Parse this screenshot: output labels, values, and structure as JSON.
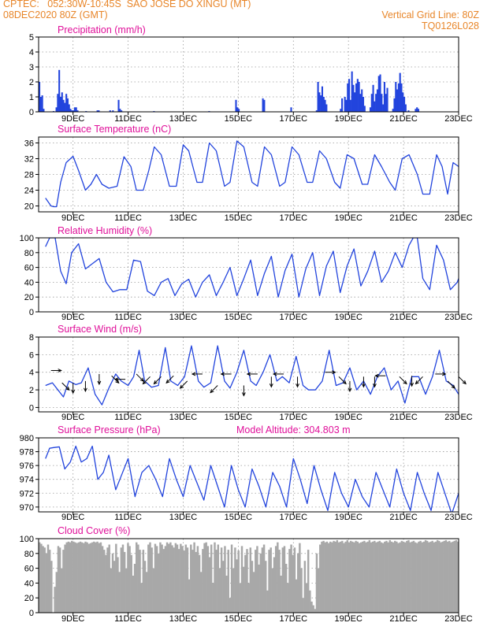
{
  "header": {
    "line1_left": "CPTEC:   052:30W-10:45S  SAO JOSE DO XINGU (MT)",
    "line2_left": "08DEC2020 80Z (GMT)",
    "line2_right": "Vertical Grid Line: 80Z",
    "line3_right": "TQ0126L028"
  },
  "colors": {
    "header": "#e8862a",
    "title": "#e0109a",
    "series": "#2244dd",
    "cloud": "#a8a8a8",
    "arrow": "#000000"
  },
  "x_ticks": [
    "9DEC",
    "11DEC",
    "13DEC",
    "15DEC",
    "17DEC",
    "19DEC",
    "21DEC",
    "23DEC"
  ],
  "chart_data": [
    {
      "type": "bar",
      "title": "Precipitation (mm/h)",
      "ylim": [
        0,
        5
      ],
      "yticks": [
        0,
        1,
        2,
        3,
        4,
        5
      ],
      "grid": true,
      "values": [
        2.0,
        1.0,
        1.1,
        0.2,
        0,
        0,
        0,
        0,
        0,
        0,
        0.05,
        0,
        0.3,
        1.2,
        2.8,
        1.0,
        1.3,
        0.8,
        0.6,
        1.2,
        0.9,
        0.5,
        0.2,
        0.1,
        0.1,
        0.3,
        0.3,
        0.1,
        0,
        0,
        0,
        0,
        0,
        0.05,
        0,
        0,
        0,
        0,
        0,
        0,
        0,
        0.1,
        0.1,
        0,
        0,
        0,
        0,
        0,
        0,
        0,
        0.1,
        0,
        0.1,
        0,
        0,
        0,
        0.8,
        0.2,
        0.1,
        0,
        0,
        0,
        0,
        0,
        0,
        0,
        0,
        0,
        0,
        0,
        0,
        0,
        0,
        0,
        0,
        0,
        0,
        0,
        0,
        0,
        0,
        0.05,
        0,
        0,
        0,
        0,
        0,
        0,
        0,
        0,
        0,
        0,
        0,
        0,
        0,
        0,
        0,
        0,
        0,
        0,
        0,
        0,
        0,
        0,
        0,
        0,
        0,
        0,
        0,
        0,
        0,
        0,
        0,
        0,
        0,
        0,
        0,
        0,
        0,
        0,
        0.05,
        0,
        0,
        0,
        0,
        0,
        0,
        0,
        0,
        0,
        0,
        0,
        0,
        0,
        0,
        0,
        0,
        0,
        0,
        0.8,
        0.3,
        0.2,
        0,
        0,
        0,
        0,
        0,
        0,
        0,
        0,
        0,
        0,
        0,
        0,
        0,
        0,
        0,
        0,
        0.9,
        0.8,
        0,
        0,
        0,
        0,
        0,
        0,
        0,
        0,
        0,
        0,
        0,
        0,
        0,
        0,
        0,
        0,
        0,
        0,
        0.3,
        0,
        0,
        0,
        0,
        0,
        0,
        0,
        0,
        0,
        0,
        0,
        0,
        0,
        0,
        0,
        0,
        0,
        0.1,
        2.0,
        1.3,
        1.1,
        1.7,
        1.0,
        0.8,
        0.5,
        0,
        0,
        0,
        0,
        0,
        0,
        0,
        0,
        0,
        0.2,
        0.9,
        0,
        1.0,
        0.8,
        1.9,
        2.2,
        0.8,
        2.7,
        1.8,
        1.3,
        1.9,
        2.2,
        2.0,
        1.2,
        1.5,
        1.0,
        0.4,
        0,
        0,
        0,
        0.3,
        1.2,
        1.8,
        0.7,
        1.2,
        1.5,
        2.4,
        2.5,
        1.2,
        0.5,
        2.0,
        1.2,
        1.6,
        0,
        0,
        0,
        0.2,
        0.9,
        2.0,
        1.5,
        1.9,
        2.6,
        1.9,
        1.3,
        1.0,
        0.5,
        0,
        0.1,
        0,
        0,
        0,
        0,
        0.2,
        0.3,
        0.2,
        0,
        0,
        0,
        0,
        0,
        0,
        0,
        0,
        0,
        0,
        0,
        0,
        0,
        0,
        0,
        0,
        0,
        0,
        0,
        0,
        0,
        0,
        0,
        0,
        0,
        0,
        0,
        0
      ]
    },
    {
      "type": "line",
      "title": "Surface Temperature (nC)",
      "ylim": [
        18.5,
        37.5
      ],
      "yticks": [
        20,
        24,
        28,
        32,
        36
      ],
      "grid": true,
      "x_days": [
        8.0,
        8.2,
        8.3,
        8.4,
        8.55,
        8.75,
        9.0,
        9.2,
        9.45,
        9.65,
        9.85,
        10.05,
        10.3,
        10.6,
        10.85,
        11.1,
        11.3,
        11.55,
        11.75,
        11.95,
        12.2,
        12.5,
        12.75,
        13.0,
        13.2,
        13.5,
        13.7,
        13.95,
        14.2,
        14.5,
        14.7,
        14.95,
        15.2,
        15.5,
        15.7,
        15.95,
        16.2,
        16.5,
        16.7,
        16.95,
        17.2,
        17.5,
        17.7,
        17.95,
        18.2,
        18.5,
        18.7,
        18.95,
        19.2,
        19.5,
        19.7,
        19.95,
        20.2,
        20.5,
        20.7,
        20.95,
        21.2,
        21.5,
        21.7,
        21.95,
        22.2,
        22.4,
        22.6,
        22.8,
        23.0
      ],
      "values": [
        22,
        20,
        19.8,
        19.8,
        26,
        31,
        32.6,
        29,
        24,
        25.5,
        28,
        25.5,
        24.5,
        25,
        32.5,
        30,
        24,
        24,
        29,
        35,
        33,
        25,
        25,
        35.5,
        34,
        26,
        26,
        36,
        34,
        25,
        26,
        36.5,
        35,
        26,
        25,
        35,
        33,
        25,
        26,
        35,
        33,
        26,
        26,
        34,
        32,
        26,
        24.5,
        33,
        32,
        25.5,
        25.5,
        33,
        30,
        26,
        24,
        32,
        33,
        28,
        23,
        23,
        33,
        30,
        23,
        31,
        30
      ]
    },
    {
      "type": "line",
      "title": "Relative Humidity (%)",
      "ylim": [
        0,
        100
      ],
      "yticks": [
        0,
        20,
        40,
        60,
        80,
        100
      ],
      "grid": true,
      "x_days": [
        8.0,
        8.15,
        8.35,
        8.55,
        8.75,
        8.95,
        9.2,
        9.45,
        9.7,
        9.95,
        10.2,
        10.45,
        10.7,
        10.95,
        11.2,
        11.45,
        11.7,
        11.95,
        12.2,
        12.45,
        12.7,
        12.95,
        13.2,
        13.45,
        13.7,
        13.95,
        14.2,
        14.45,
        14.7,
        14.95,
        15.2,
        15.45,
        15.7,
        15.95,
        16.2,
        16.45,
        16.7,
        16.95,
        17.2,
        17.45,
        17.7,
        17.95,
        18.2,
        18.45,
        18.7,
        18.95,
        19.2,
        19.45,
        19.7,
        19.95,
        20.2,
        20.45,
        20.7,
        20.95,
        21.2,
        21.35,
        21.5,
        21.7,
        21.95,
        22.2,
        22.45,
        22.7,
        22.95,
        23.0
      ],
      "values": [
        88,
        100,
        100,
        55,
        38,
        80,
        92,
        58,
        65,
        72,
        40,
        27,
        30,
        30,
        70,
        68,
        28,
        22,
        40,
        45,
        22,
        38,
        44,
        20,
        40,
        50,
        22,
        40,
        60,
        22,
        45,
        70,
        22,
        52,
        75,
        20,
        56,
        78,
        20,
        58,
        80,
        22,
        62,
        82,
        26,
        62,
        85,
        35,
        55,
        82,
        40,
        55,
        80,
        60,
        90,
        100,
        100,
        45,
        30,
        90,
        70,
        30,
        40,
        45
      ]
    },
    {
      "type": "line",
      "title": "Surface Wind (m/s)",
      "ylim": [
        -0.5,
        8
      ],
      "yticks": [
        0,
        2,
        4,
        6,
        8
      ],
      "grid": true,
      "x_days": [
        8.0,
        8.25,
        8.45,
        8.65,
        8.85,
        9.1,
        9.3,
        9.55,
        9.8,
        10.05,
        10.3,
        10.55,
        10.75,
        11.0,
        11.2,
        11.4,
        11.6,
        11.85,
        12.1,
        12.35,
        12.55,
        12.8,
        13.05,
        13.3,
        13.55,
        13.75,
        14.0,
        14.25,
        14.5,
        14.7,
        14.95,
        15.2,
        15.45,
        15.65,
        15.9,
        16.15,
        16.4,
        16.6,
        16.85,
        17.1,
        17.35,
        17.55,
        17.8,
        18.05,
        18.3,
        18.55,
        18.8,
        19.05,
        19.3,
        19.55,
        19.8,
        20.05,
        20.3,
        20.55,
        20.8,
        21.05,
        21.3,
        21.55,
        21.8,
        22.05,
        22.3,
        22.55,
        22.8,
        23.0
      ],
      "values": [
        2.5,
        2.8,
        2.0,
        1.2,
        3.0,
        2.6,
        2.8,
        4.5,
        1.5,
        0.3,
        2.2,
        3.8,
        3.0,
        2.5,
        3.5,
        6.5,
        3.0,
        2.3,
        2.5,
        6.8,
        3.0,
        2.5,
        3.5,
        7.0,
        3.0,
        2.3,
        2.8,
        7.0,
        3.0,
        2.2,
        4.0,
        6.5,
        3.0,
        2.5,
        4.0,
        6.0,
        3.0,
        3.5,
        2.8,
        5.8,
        2.5,
        2.0,
        2.0,
        3.0,
        6.5,
        2.5,
        2.8,
        4.5,
        2.0,
        3.0,
        1.5,
        3.5,
        4.5,
        2.0,
        3.0,
        0.5,
        3.5,
        3.5,
        1.5,
        3.5,
        6.5,
        3.0,
        2.5,
        1.5
      ],
      "arrows": [
        {
          "day": 8.2,
          "speed": 4.2,
          "dir": "E"
        },
        {
          "day": 8.6,
          "speed": 2.8,
          "dir": "SE"
        },
        {
          "day": 9.0,
          "speed": 2.8,
          "dir": "S"
        },
        {
          "day": 9.45,
          "speed": 3.0,
          "dir": "S"
        },
        {
          "day": 9.95,
          "speed": 3.8,
          "dir": "S"
        },
        {
          "day": 10.4,
          "speed": 3.6,
          "dir": "SE"
        },
        {
          "day": 10.9,
          "speed": 3.2,
          "dir": "W"
        },
        {
          "day": 11.3,
          "speed": 3.8,
          "dir": "SE"
        },
        {
          "day": 11.8,
          "speed": 3.5,
          "dir": "SW"
        },
        {
          "day": 12.2,
          "speed": 3.5,
          "dir": "SW"
        },
        {
          "day": 12.65,
          "speed": 3.6,
          "dir": "SW"
        },
        {
          "day": 13.15,
          "speed": 3.0,
          "dir": "SW"
        },
        {
          "day": 13.7,
          "speed": 3.8,
          "dir": "W"
        },
        {
          "day": 14.25,
          "speed": 2.5,
          "dir": "SW"
        },
        {
          "day": 14.75,
          "speed": 3.8,
          "dir": "W"
        },
        {
          "day": 15.2,
          "speed": 2.5,
          "dir": "S"
        },
        {
          "day": 15.7,
          "speed": 3.8,
          "dir": "W"
        },
        {
          "day": 16.2,
          "speed": 3.5,
          "dir": "S"
        },
        {
          "day": 16.65,
          "speed": 3.8,
          "dir": "W"
        },
        {
          "day": 17.15,
          "speed": 3.5,
          "dir": "S"
        },
        {
          "day": 18.15,
          "speed": 4.0,
          "dir": "E"
        },
        {
          "day": 18.65,
          "speed": 3.5,
          "dir": "SE"
        },
        {
          "day": 19.05,
          "speed": 3.0,
          "dir": "S"
        },
        {
          "day": 19.55,
          "speed": 3.5,
          "dir": "S"
        },
        {
          "day": 19.95,
          "speed": 3.5,
          "dir": "S"
        },
        {
          "day": 20.35,
          "speed": 3.6,
          "dir": "W"
        },
        {
          "day": 20.85,
          "speed": 3.5,
          "dir": "SE"
        },
        {
          "day": 21.3,
          "speed": 3.6,
          "dir": "S"
        },
        {
          "day": 21.7,
          "speed": 3.5,
          "dir": "SW"
        },
        {
          "day": 22.15,
          "speed": 3.8,
          "dir": "E"
        },
        {
          "day": 22.6,
          "speed": 3.0,
          "dir": "SE"
        },
        {
          "day": 23.0,
          "speed": 3.5,
          "dir": "SE"
        }
      ]
    },
    {
      "type": "line",
      "title": "Surface Pressure (hPa)",
      "annotation": "Model Altitude: 304.803 m",
      "ylim": [
        969.3,
        980
      ],
      "yticks": [
        970,
        972,
        974,
        976,
        978,
        980
      ],
      "grid": true,
      "x_days": [
        8.0,
        8.15,
        8.3,
        8.5,
        8.7,
        8.9,
        9.1,
        9.3,
        9.5,
        9.7,
        9.9,
        10.1,
        10.3,
        10.55,
        10.75,
        11.0,
        11.25,
        11.5,
        11.75,
        12.0,
        12.25,
        12.5,
        12.75,
        13.0,
        13.25,
        13.5,
        13.75,
        14.0,
        14.25,
        14.5,
        14.75,
        15.0,
        15.25,
        15.5,
        15.75,
        16.0,
        16.25,
        16.5,
        16.75,
        17.0,
        17.25,
        17.5,
        17.75,
        18.0,
        18.25,
        18.5,
        18.75,
        19.0,
        19.25,
        19.5,
        19.75,
        20.0,
        20.25,
        20.5,
        20.75,
        21.0,
        21.25,
        21.5,
        21.75,
        22.0,
        22.25,
        22.5,
        22.75,
        23.0
      ],
      "values": [
        977,
        978.5,
        978.6,
        978.7,
        975.5,
        976.5,
        978.8,
        976.5,
        977,
        978.8,
        974,
        975,
        977.5,
        972.5,
        974.5,
        977,
        971.5,
        975,
        976,
        974,
        971.5,
        977,
        974,
        971.5,
        976,
        973.5,
        971,
        976,
        973,
        970,
        976,
        972.5,
        970,
        975.5,
        973,
        970,
        975,
        973,
        970,
        977,
        974,
        970.5,
        976,
        972.5,
        969.5,
        975,
        972,
        970,
        974,
        971.5,
        970,
        975,
        972.5,
        970,
        975.5,
        972,
        969.5,
        975,
        972,
        969.5,
        975,
        972,
        969,
        972
      ]
    },
    {
      "type": "bar",
      "title": "Cloud Cover (%)",
      "ylim": [
        0,
        100
      ],
      "yticks": [
        0,
        20,
        40,
        60,
        80,
        100
      ],
      "grid": true,
      "values": [
        95,
        93,
        90,
        88,
        80,
        92,
        85,
        70,
        0,
        35,
        55,
        90,
        88,
        60,
        85,
        92,
        95,
        96,
        95,
        97,
        96,
        95,
        94,
        95,
        96,
        95,
        94,
        96,
        95,
        93,
        94,
        95,
        96,
        95,
        96,
        94,
        95,
        90,
        85,
        78,
        88,
        92,
        60,
        80,
        70,
        93,
        75,
        55,
        88,
        92,
        82,
        60,
        94,
        90,
        78,
        50,
        66,
        95,
        92,
        85,
        40,
        85,
        70,
        55,
        92,
        95,
        88,
        60,
        93,
        90,
        80,
        95,
        92,
        86,
        90,
        95,
        93,
        95,
        91,
        88,
        94,
        92,
        86,
        93,
        90,
        84,
        92,
        88,
        45,
        92,
        85,
        95,
        82,
        90,
        78,
        55,
        86,
        94,
        95,
        90,
        75,
        92,
        40,
        95,
        85,
        92,
        60,
        88,
        70,
        90,
        50,
        85,
        20,
        92,
        60,
        88,
        72,
        84,
        40,
        90,
        62,
        78,
        86,
        40,
        88,
        70,
        55,
        85,
        90,
        65,
        80,
        88,
        92,
        70,
        30,
        85,
        88,
        60,
        75,
        90,
        95,
        85,
        50,
        88,
        90,
        66,
        40,
        86,
        92,
        78,
        88,
        45,
        80,
        94,
        60,
        20,
        70,
        40,
        85,
        30,
        15,
        10,
        5,
        80,
        60,
        92,
        96,
        97,
        95,
        96,
        94,
        96,
        95,
        97,
        96,
        98,
        95,
        96,
        97,
        94,
        96,
        98,
        95,
        97,
        96,
        95,
        97,
        96,
        94,
        95,
        96,
        97,
        95,
        96,
        98,
        95,
        96,
        97,
        95,
        96,
        97,
        95,
        94,
        96,
        97,
        95,
        98,
        96,
        95,
        97,
        96,
        94,
        95,
        97,
        96,
        95,
        97,
        98,
        95,
        96,
        97,
        95,
        94,
        96,
        97,
        95,
        96,
        98,
        97,
        95,
        96,
        97,
        95,
        96,
        98,
        97,
        95,
        96,
        97,
        98,
        96,
        97,
        95,
        96,
        97,
        98,
        96
      ]
    }
  ]
}
